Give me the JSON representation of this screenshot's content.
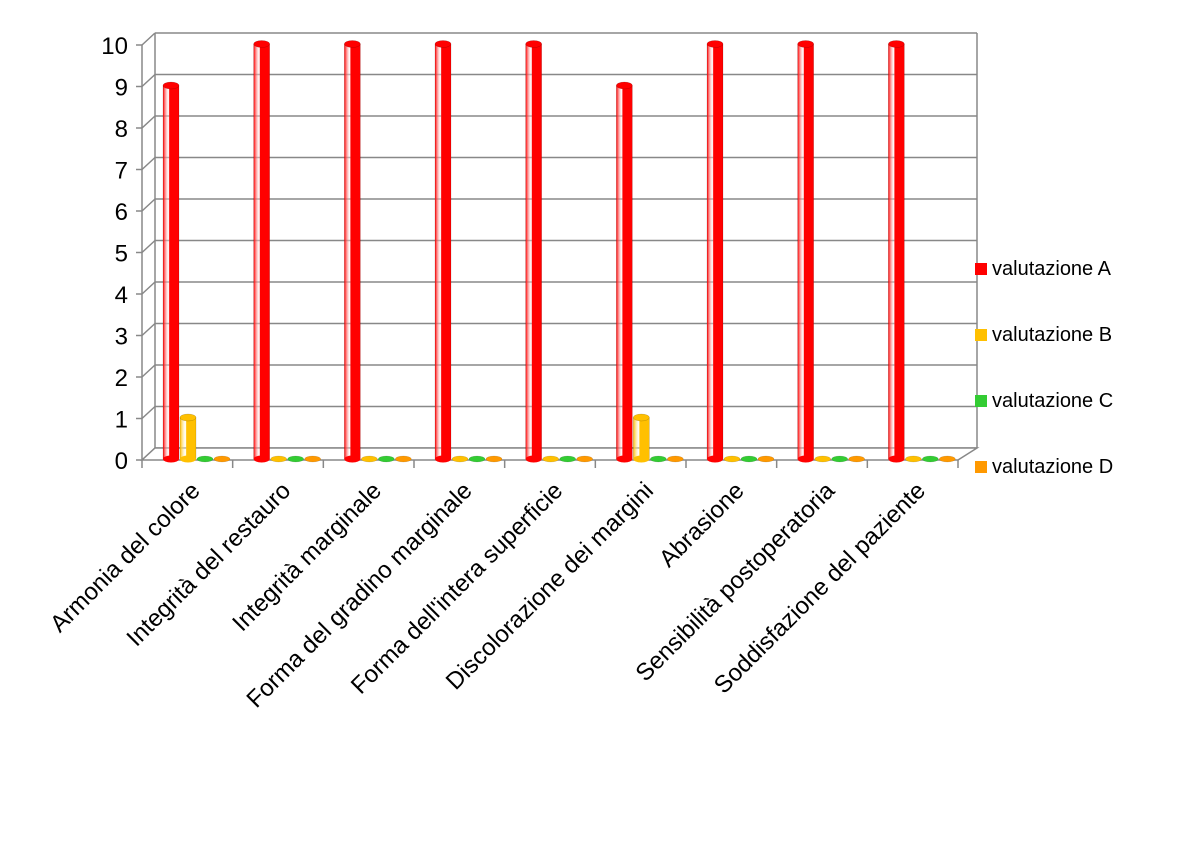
{
  "chart_data": {
    "type": "bar",
    "style": "3d-cylinder",
    "categories": [
      "Armonia del colore",
      "Integrità del restauro",
      "Integrità marginale",
      "Forma del gradino marginale",
      "Forma dell'intera superficie",
      "Discolorazione dei margini",
      "Abrasione",
      "Sensibilità postoperatoria",
      "Soddisfazione del paziente"
    ],
    "series": [
      {
        "name": "valutazione A",
        "color": "#ff0000",
        "values": [
          9,
          10,
          10,
          10,
          10,
          9,
          10,
          10,
          10
        ]
      },
      {
        "name": "valutazione B",
        "color": "#ffc000",
        "values": [
          1,
          0,
          0,
          0,
          0,
          1,
          0,
          0,
          0
        ]
      },
      {
        "name": "valutazione C",
        "color": "#33cc33",
        "values": [
          0,
          0,
          0,
          0,
          0,
          0,
          0,
          0,
          0
        ]
      },
      {
        "name": "valutazione D",
        "color": "#ff9900",
        "values": [
          0,
          0,
          0,
          0,
          0,
          0,
          0,
          0,
          0
        ]
      }
    ],
    "y_ticks": [
      "0",
      "1",
      "2",
      "3",
      "4",
      "5",
      "6",
      "7",
      "8",
      "9",
      "10"
    ],
    "ylim": [
      0,
      10
    ],
    "grid": true,
    "legend": "right"
  }
}
